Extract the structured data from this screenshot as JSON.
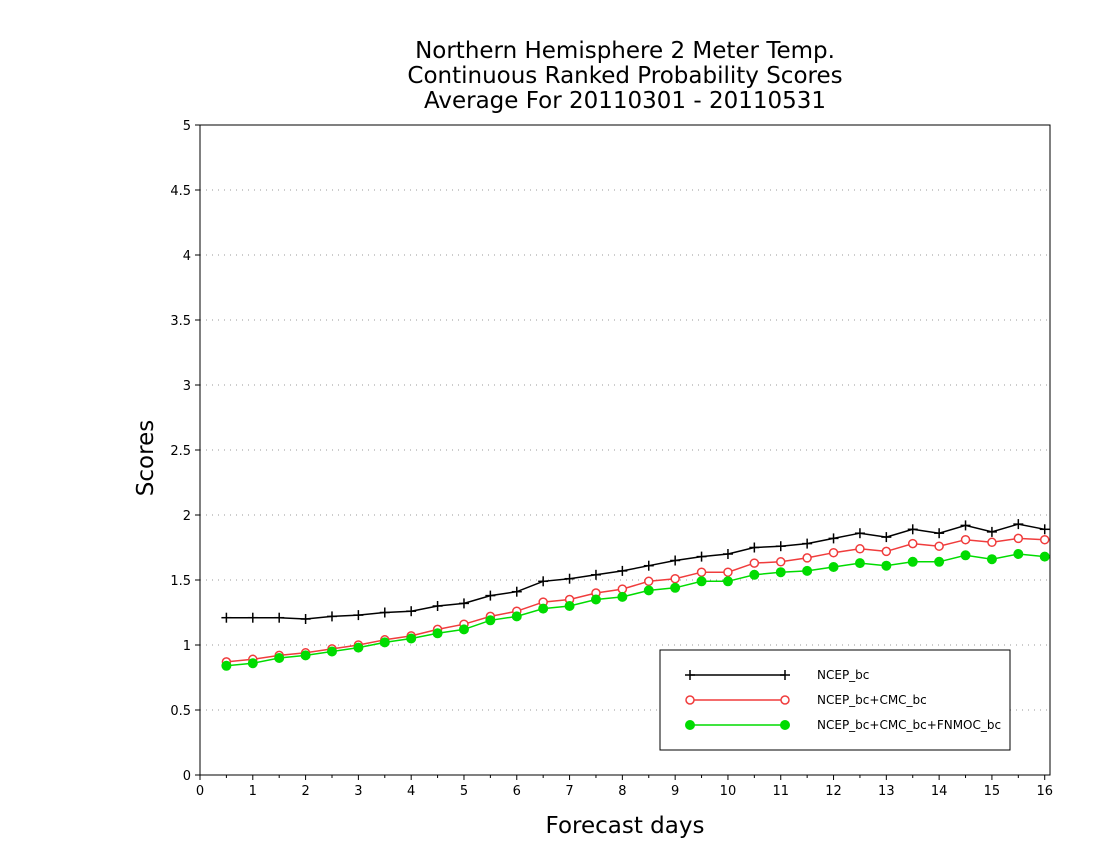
{
  "chart_data": {
    "type": "line",
    "title": [
      "Northern Hemisphere 2 Meter Temp.",
      "Continuous Ranked Probability Scores",
      "Average For 20110301 - 20110531"
    ],
    "xlabel": "Forecast days",
    "ylabel": "Scores",
    "xlim": [
      0,
      16.1
    ],
    "ylim": [
      0,
      5
    ],
    "x_ticks": [
      0,
      1,
      2,
      3,
      4,
      5,
      6,
      7,
      8,
      9,
      10,
      11,
      12,
      13,
      14,
      15,
      16
    ],
    "x_tick_labels": [
      "0",
      "1",
      "2",
      "3",
      "4",
      "5",
      "6",
      "7",
      "8",
      "9",
      "10",
      "11",
      "12",
      "13",
      "14",
      "15",
      "16"
    ],
    "y_ticks": [
      0,
      0.5,
      1,
      1.5,
      2,
      2.5,
      3,
      3.5,
      4,
      4.5,
      5
    ],
    "y_tick_labels": [
      "0",
      "0.5",
      "1",
      "1.5",
      "2",
      "2.5",
      "3",
      "3.5",
      "4",
      "4.5",
      "5"
    ],
    "grid": "horizontal dotted",
    "legend_position": "bottom-right",
    "x": [
      0.5,
      1,
      1.5,
      2,
      2.5,
      3,
      3.5,
      4,
      4.5,
      5,
      5.5,
      6,
      6.5,
      7,
      7.5,
      8,
      8.5,
      9,
      9.5,
      10,
      10.5,
      11,
      11.5,
      12,
      12.5,
      13,
      13.5,
      14,
      14.5,
      15,
      15.5,
      16
    ],
    "series": [
      {
        "name": "NCEP_bc",
        "color": "#000000",
        "marker": "plus",
        "values": [
          1.21,
          1.21,
          1.21,
          1.2,
          1.22,
          1.23,
          1.25,
          1.26,
          1.3,
          1.32,
          1.38,
          1.41,
          1.49,
          1.51,
          1.54,
          1.57,
          1.61,
          1.65,
          1.68,
          1.7,
          1.75,
          1.76,
          1.78,
          1.82,
          1.86,
          1.83,
          1.89,
          1.86,
          1.92,
          1.87,
          1.93,
          1.89
        ]
      },
      {
        "name": "NCEP_bc+CMC_bc",
        "color": "#f03c3c",
        "marker": "open-circle",
        "values": [
          0.87,
          0.89,
          0.92,
          0.94,
          0.97,
          1.0,
          1.04,
          1.07,
          1.12,
          1.16,
          1.22,
          1.26,
          1.33,
          1.35,
          1.4,
          1.43,
          1.49,
          1.51,
          1.56,
          1.56,
          1.63,
          1.64,
          1.67,
          1.71,
          1.74,
          1.72,
          1.78,
          1.76,
          1.81,
          1.79,
          1.82,
          1.81
        ]
      },
      {
        "name": "NCEP_bc+CMC_bc+FNMOC_bc",
        "color": "#00dc00",
        "marker": "filled-circle",
        "values": [
          0.84,
          0.86,
          0.9,
          0.92,
          0.95,
          0.98,
          1.02,
          1.05,
          1.09,
          1.12,
          1.19,
          1.22,
          1.28,
          1.3,
          1.35,
          1.37,
          1.42,
          1.44,
          1.49,
          1.49,
          1.54,
          1.56,
          1.57,
          1.6,
          1.63,
          1.61,
          1.64,
          1.64,
          1.69,
          1.66,
          1.7,
          1.68
        ]
      }
    ]
  }
}
